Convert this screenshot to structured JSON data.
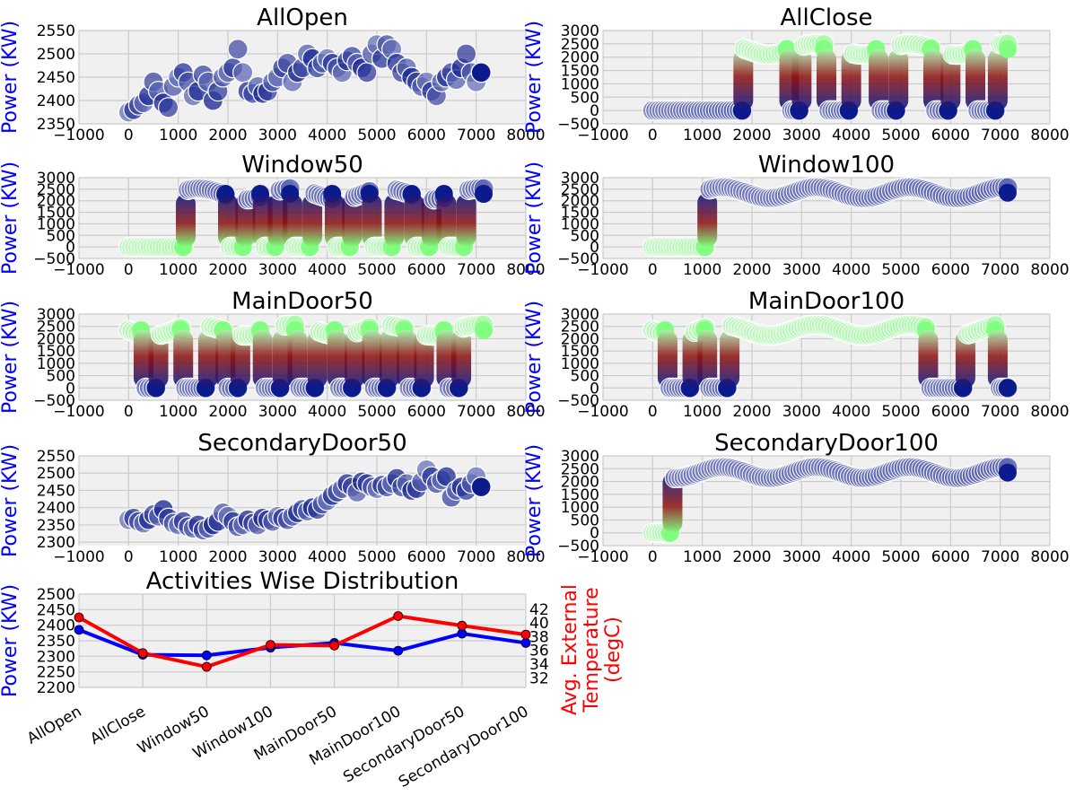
{
  "colors": {
    "axes_bg": "#f0f0f0",
    "grid": "#cbcbcb",
    "power_label": "#0000ff",
    "temp_label": "#ff0000",
    "power_line": "#0000ff",
    "temp_line": "#ff0000",
    "dark_blue": "#0b1a8c",
    "light_blue": "#8a90c8",
    "dark_red": "#8b0f0f",
    "light_green": "#b2f0b2",
    "green": "#80ff80"
  },
  "chart_data": [
    {
      "type": "scatter",
      "title": "AllOpen",
      "ylabel": "Power (KW)",
      "xlim": [
        -1000,
        8000
      ],
      "ylim": [
        2350,
        2550
      ],
      "xticks": [
        "−1000",
        "0",
        "1000",
        "2000",
        "3000",
        "4000",
        "5000",
        "6000",
        "7000",
        "8000"
      ],
      "yticks": [
        "2350",
        "2400",
        "2450",
        "2500",
        "2550"
      ],
      "series": [
        {
          "color_scale": "blue",
          "x": [
            0,
            100,
            200,
            300,
            400,
            500,
            600,
            700,
            800,
            900,
            1000,
            1100,
            1200,
            1300,
            1400,
            1500,
            1600,
            1700,
            1800,
            1900,
            2000,
            2100,
            2200,
            2300,
            2400,
            2500,
            2600,
            2700,
            2800,
            2900,
            3000,
            3100,
            3200,
            3300,
            3400,
            3500,
            3600,
            3700,
            3800,
            3900,
            4000,
            4100,
            4200,
            4300,
            4400,
            4500,
            4600,
            4700,
            4800,
            4900,
            5000,
            5100,
            5200,
            5300,
            5400,
            5500,
            5600,
            5700,
            5800,
            5900,
            6000,
            6100,
            6200,
            6300,
            6400,
            6500,
            6600,
            6700,
            6800,
            6900,
            7000,
            7100
          ],
          "y": [
            2375,
            2380,
            2390,
            2395,
            2410,
            2440,
            2420,
            2395,
            2385,
            2430,
            2450,
            2460,
            2440,
            2410,
            2420,
            2455,
            2440,
            2400,
            2420,
            2450,
            2460,
            2470,
            2510,
            2460,
            2420,
            2415,
            2430,
            2415,
            2420,
            2440,
            2450,
            2470,
            2480,
            2440,
            2460,
            2470,
            2500,
            2490,
            2470,
            2480,
            2490,
            2480,
            2470,
            2460,
            2485,
            2495,
            2480,
            2470,
            2460,
            2500,
            2520,
            2490,
            2520,
            2510,
            2480,
            2460,
            2470,
            2450,
            2440,
            2430,
            2440,
            2420,
            2410,
            2440,
            2450,
            2460,
            2445,
            2470,
            2500,
            2460,
            2440,
            2460
          ]
        }
      ]
    },
    {
      "type": "scatter",
      "title": "AllClose",
      "ylabel": "Power (KW)",
      "xlim": [
        -1000,
        8000
      ],
      "ylim": [
        -500,
        3000
      ],
      "xticks": [
        "−1000",
        "0",
        "1000",
        "2000",
        "3000",
        "4000",
        "5000",
        "6000",
        "7000",
        "8000"
      ],
      "yticks": [
        "−500",
        "0",
        "500",
        "1000",
        "1500",
        "2000",
        "2500",
        "3000"
      ],
      "segments": [
        [
          0,
          1800,
          "low"
        ],
        [
          1850,
          2700,
          "high"
        ],
        [
          2800,
          2950,
          "low"
        ],
        [
          3050,
          3450,
          "high"
        ],
        [
          3550,
          3950,
          "low"
        ],
        [
          4050,
          4500,
          "high"
        ],
        [
          4600,
          4900,
          "low"
        ],
        [
          5000,
          5600,
          "high"
        ],
        [
          5700,
          5950,
          "low"
        ],
        [
          6050,
          6450,
          "high"
        ],
        [
          6550,
          6900,
          "low"
        ],
        [
          7000,
          7150,
          "high"
        ]
      ],
      "low_value": 0,
      "high_value": 2300
    },
    {
      "type": "scatter",
      "title": "Window50",
      "ylabel": "Power (KW)",
      "xlim": [
        -1000,
        8000
      ],
      "ylim": [
        -500,
        3000
      ],
      "xticks": [
        "−1000",
        "0",
        "1000",
        "2000",
        "3000",
        "4000",
        "5000",
        "6000",
        "7000",
        "8000"
      ],
      "yticks": [
        "−500",
        "0",
        "500",
        "1000",
        "1500",
        "2000",
        "2500",
        "3000"
      ],
      "segments": [
        [
          0,
          1100,
          "low"
        ],
        [
          1200,
          1950,
          "high"
        ],
        [
          2050,
          2300,
          "low"
        ],
        [
          2400,
          2650,
          "high"
        ],
        [
          2750,
          2950,
          "low"
        ],
        [
          3050,
          3250,
          "high"
        ],
        [
          3350,
          3650,
          "low"
        ],
        [
          3750,
          4100,
          "high"
        ],
        [
          4200,
          4450,
          "low"
        ],
        [
          4550,
          4850,
          "high"
        ],
        [
          4950,
          5300,
          "low"
        ],
        [
          5400,
          5700,
          "high"
        ],
        [
          5800,
          6050,
          "low"
        ],
        [
          6150,
          6350,
          "high"
        ],
        [
          6450,
          6750,
          "low"
        ],
        [
          6850,
          7150,
          "high"
        ]
      ],
      "low_value": 0,
      "high_value": 2300
    },
    {
      "type": "scatter",
      "title": "Window100",
      "ylabel": "Power (KW)",
      "xlim": [
        -1000,
        8000
      ],
      "ylim": [
        -500,
        3000
      ],
      "xticks": [
        "−1000",
        "0",
        "1000",
        "2000",
        "3000",
        "4000",
        "5000",
        "6000",
        "7000",
        "8000"
      ],
      "yticks": [
        "−500",
        "0",
        "500",
        "1000",
        "1500",
        "2000",
        "2500",
        "3000"
      ],
      "segments": [
        [
          0,
          1050,
          "low"
        ],
        [
          1150,
          7150,
          "high"
        ]
      ],
      "low_value": 0,
      "high_value": 2350
    },
    {
      "type": "scatter",
      "title": "MainDoor50",
      "ylabel": "Power (KW)",
      "xlim": [
        -1000,
        8000
      ],
      "ylim": [
        -500,
        3000
      ],
      "xticks": [
        "−1000",
        "0",
        "1000",
        "2000",
        "3000",
        "4000",
        "5000",
        "6000",
        "7000",
        "8000"
      ],
      "yticks": [
        "−500",
        "0",
        "500",
        "1000",
        "1500",
        "2000",
        "2500",
        "3000"
      ],
      "segments": [
        [
          0,
          250,
          "high"
        ],
        [
          350,
          550,
          "low"
        ],
        [
          650,
          1050,
          "high"
        ],
        [
          1150,
          1550,
          "low"
        ],
        [
          1650,
          1900,
          "high"
        ],
        [
          2000,
          2200,
          "low"
        ],
        [
          2300,
          2650,
          "high"
        ],
        [
          2750,
          3050,
          "low"
        ],
        [
          3150,
          3350,
          "high"
        ],
        [
          3450,
          3750,
          "low"
        ],
        [
          3850,
          4150,
          "high"
        ],
        [
          4250,
          4500,
          "low"
        ],
        [
          4600,
          4850,
          "high"
        ],
        [
          4950,
          5200,
          "low"
        ],
        [
          5300,
          5550,
          "high"
        ],
        [
          5650,
          5900,
          "low"
        ],
        [
          6000,
          6350,
          "high"
        ],
        [
          6450,
          6650,
          "low"
        ],
        [
          6750,
          7150,
          "high"
        ]
      ],
      "low_value": 0,
      "high_value": 2350
    },
    {
      "type": "scatter",
      "title": "MainDoor100",
      "ylabel": "Power (KW)",
      "xlim": [
        -1000,
        8000
      ],
      "ylim": [
        -500,
        3000
      ],
      "xticks": [
        "−1000",
        "0",
        "1000",
        "2000",
        "3000",
        "4000",
        "5000",
        "6000",
        "7000",
        "8000"
      ],
      "yticks": [
        "−500",
        "0",
        "500",
        "1000",
        "1500",
        "2000",
        "2500",
        "3000"
      ],
      "segments": [
        [
          0,
          250,
          "high"
        ],
        [
          350,
          750,
          "low"
        ],
        [
          850,
          1050,
          "high"
        ],
        [
          1150,
          1500,
          "low"
        ],
        [
          1600,
          5500,
          "high"
        ],
        [
          5600,
          6250,
          "low"
        ],
        [
          6350,
          6900,
          "high"
        ],
        [
          7000,
          7150,
          "low"
        ]
      ],
      "low_value": 0,
      "high_value": 2350
    },
    {
      "type": "scatter",
      "title": "SecondaryDoor50",
      "ylabel": "Power (KW)",
      "xlim": [
        -1000,
        8000
      ],
      "ylim": [
        2290,
        2550
      ],
      "xticks": [
        "−1000",
        "0",
        "1000",
        "2000",
        "3000",
        "4000",
        "5000",
        "6000",
        "7000",
        "8000"
      ],
      "yticks": [
        "2300",
        "2350",
        "2400",
        "2450",
        "2500",
        "2550"
      ],
      "series": [
        {
          "color_scale": "blue",
          "x": [
            0,
            100,
            200,
            300,
            400,
            500,
            600,
            700,
            800,
            900,
            1000,
            1100,
            1200,
            1300,
            1400,
            1500,
            1600,
            1700,
            1800,
            1900,
            2000,
            2100,
            2200,
            2300,
            2400,
            2500,
            2600,
            2700,
            2800,
            2900,
            3000,
            3100,
            3200,
            3300,
            3400,
            3500,
            3600,
            3700,
            3800,
            3900,
            4000,
            4100,
            4200,
            4300,
            4400,
            4500,
            4600,
            4700,
            4800,
            4900,
            5000,
            5100,
            5200,
            5300,
            5400,
            5500,
            5600,
            5700,
            5800,
            5900,
            6000,
            6100,
            6200,
            6300,
            6400,
            6500,
            6600,
            6700,
            6800,
            6900,
            7000,
            7100
          ],
          "y": [
            2365,
            2370,
            2360,
            2355,
            2365,
            2380,
            2375,
            2395,
            2370,
            2355,
            2350,
            2360,
            2345,
            2340,
            2350,
            2335,
            2340,
            2350,
            2360,
            2385,
            2375,
            2360,
            2345,
            2350,
            2365,
            2355,
            2350,
            2370,
            2365,
            2360,
            2375,
            2370,
            2365,
            2375,
            2385,
            2395,
            2390,
            2400,
            2395,
            2410,
            2420,
            2435,
            2445,
            2455,
            2470,
            2460,
            2445,
            2475,
            2470,
            2460,
            2455,
            2465,
            2460,
            2470,
            2485,
            2460,
            2470,
            2450,
            2455,
            2475,
            2510,
            2490,
            2470,
            2480,
            2490,
            2430,
            2450,
            2460,
            2450,
            2470,
            2490,
            2460
          ]
        }
      ]
    },
    {
      "type": "scatter",
      "title": "SecondaryDoor100",
      "ylabel": "Power (KW)",
      "xlim": [
        -1000,
        8000
      ],
      "ylim": [
        -500,
        3000
      ],
      "xticks": [
        "−1000",
        "0",
        "1000",
        "2000",
        "3000",
        "4000",
        "5000",
        "6000",
        "7000",
        "8000"
      ],
      "yticks": [
        "−500",
        "0",
        "500",
        "1000",
        "1500",
        "2000",
        "2500",
        "3000"
      ],
      "segments": [
        [
          0,
          350,
          "low"
        ],
        [
          450,
          7150,
          "high"
        ]
      ],
      "low_value": 0,
      "high_value": 2350
    },
    {
      "type": "line",
      "title": "Activities Wise Distribution",
      "ylabel": "Power (KW)",
      "y2label": "Avg. External Temperature (degC)",
      "categories": [
        "AllOpen",
        "AllClose",
        "Window50",
        "Window100",
        "MainDoor50",
        "MainDoor100",
        "SecondaryDoor50",
        "SecondaryDoor100"
      ],
      "ylim": [
        2200,
        2500
      ],
      "y2lim": [
        30.6,
        44.2
      ],
      "yticks": [
        "2200",
        "2250",
        "2300",
        "2350",
        "2400",
        "2450",
        "2500"
      ],
      "y2ticks": [
        "32",
        "34",
        "36",
        "38",
        "40",
        "42"
      ],
      "series": [
        {
          "axis": "left",
          "color": "blue",
          "values": [
            2385,
            2305,
            2303,
            2328,
            2343,
            2318,
            2373,
            2343
          ]
        },
        {
          "axis": "right",
          "color": "red",
          "values": [
            40.8,
            35.6,
            33.6,
            36.8,
            36.7,
            41.0,
            39.6,
            38.3
          ]
        }
      ]
    }
  ]
}
